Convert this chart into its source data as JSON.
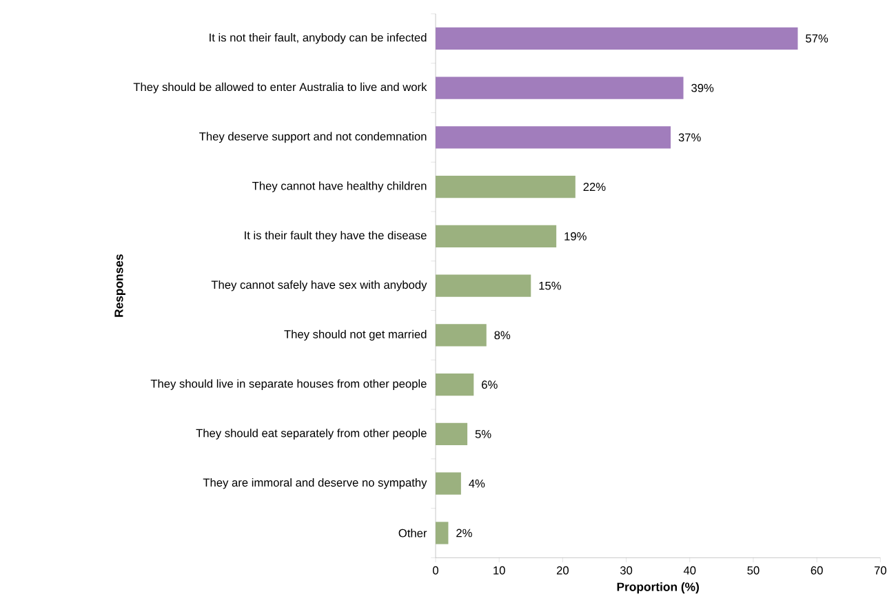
{
  "chart_data": {
    "type": "bar",
    "orientation": "horizontal",
    "categories": [
      "It is not their fault, anybody can be infected",
      "They should be allowed to enter Australia to live and work",
      "They deserve support and not condemnation",
      "They cannot have healthy children",
      "It is their fault they have the disease",
      "They cannot safely have sex with anybody",
      "They should not get married",
      "They should live in separate houses from other people",
      "They should eat separately from other people",
      "They are immoral and deserve no sympathy",
      "Other"
    ],
    "values": [
      57,
      39,
      37,
      22,
      19,
      15,
      8,
      6,
      5,
      4,
      2
    ],
    "colors": [
      "#a17dbc",
      "#a17dbc",
      "#a17dbc",
      "#9bb17f",
      "#9bb17f",
      "#9bb17f",
      "#9bb17f",
      "#9bb17f",
      "#9bb17f",
      "#9bb17f",
      "#9bb17f"
    ],
    "value_labels": [
      "57%",
      "39%",
      "37%",
      "22%",
      "19%",
      "15%",
      "8%",
      "6%",
      "5%",
      "4%",
      "2%"
    ],
    "xlabel": "Proportion (%)",
    "ylabel": "Responses",
    "xlim": [
      0,
      70
    ],
    "xticks": [
      0,
      10,
      20,
      30,
      40,
      50,
      60,
      70
    ]
  }
}
